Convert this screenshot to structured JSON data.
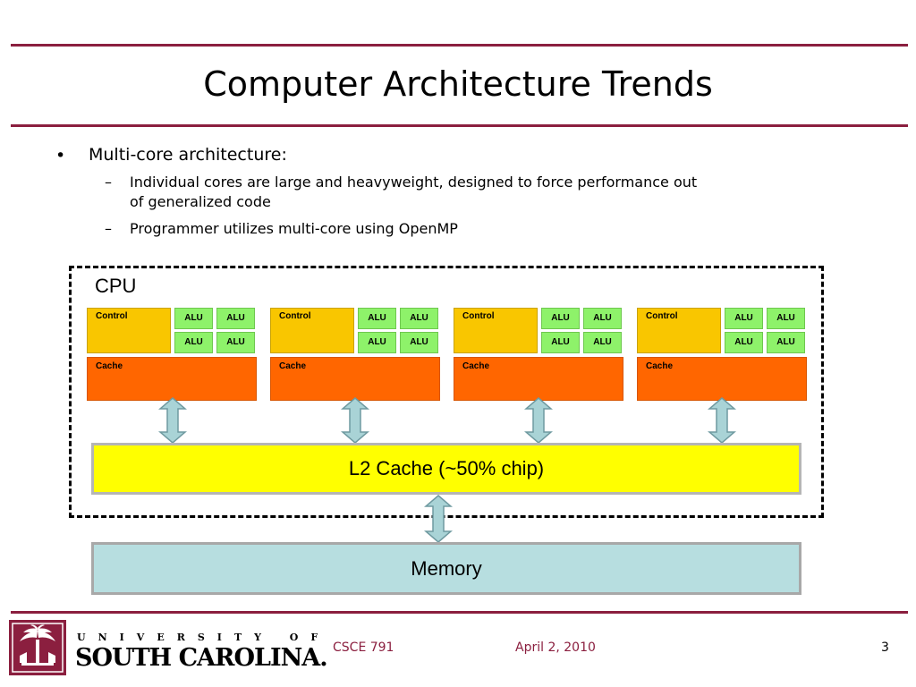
{
  "slide": {
    "title": "Computer Architecture Trends",
    "bullets": {
      "main": "Multi-core architecture:",
      "sub1_line1": "Individual cores are large and heavyweight, designed to force performance out",
      "sub1_line2": "of generalized code",
      "sub2": "Programmer utilizes multi-core using OpenMP"
    },
    "bullet_symbol": "•",
    "dash_symbol": "–"
  },
  "diagram": {
    "cpu_label": "CPU",
    "control_label": "Control",
    "alu_label": "ALU",
    "cache_label": "Cache",
    "l2_label": "L2 Cache (~50% chip)",
    "memory_label": "Memory",
    "colors": {
      "control": "#f9c600",
      "alu": "#8ef26a",
      "cache": "#ff6600",
      "l2": "#ffff00",
      "memory": "#b7dee0",
      "arrow": "#a9d3d6"
    }
  },
  "footer": {
    "logo_line1": "UNIVERSITY OF",
    "logo_line2": "SOUTH CAROLINA.",
    "course": "CSCE 791",
    "date": "April 2, 2010",
    "page": "3",
    "accent": "#8b1f3f"
  }
}
